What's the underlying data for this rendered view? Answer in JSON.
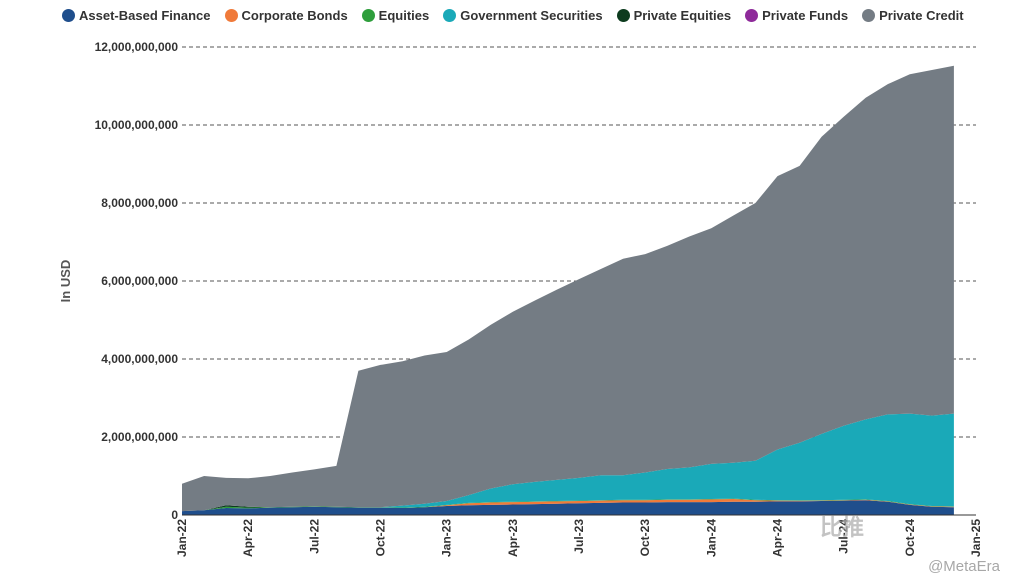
{
  "chart_data": {
    "type": "area",
    "stacked": true,
    "ylabel": "In USD",
    "ylim": [
      0,
      12000000000
    ],
    "yticks": [
      0,
      2000000000,
      4000000000,
      6000000000,
      8000000000,
      10000000000,
      12000000000
    ],
    "ytick_labels": [
      "0",
      "2,000,000,000",
      "4,000,000,000",
      "6,000,000,000",
      "8,000,000,000",
      "10,000,000,000",
      "12,000,000,000"
    ],
    "x": [
      "Jan-22",
      "Feb-22",
      "Mar-22",
      "Apr-22",
      "May-22",
      "Jun-22",
      "Jul-22",
      "Aug-22",
      "Sep-22",
      "Oct-22",
      "Nov-22",
      "Dec-22",
      "Jan-23",
      "Feb-23",
      "Mar-23",
      "Apr-23",
      "May-23",
      "Jun-23",
      "Jul-23",
      "Aug-23",
      "Sep-23",
      "Oct-23",
      "Nov-23",
      "Dec-23",
      "Jan-24",
      "Feb-24",
      "Mar-24",
      "Apr-24",
      "May-24",
      "Jun-24",
      "Jul-24",
      "Aug-24",
      "Sep-24",
      "Oct-24",
      "Nov-24",
      "Dec-24"
    ],
    "xtick_labels": [
      "Jan-22",
      "Apr-22",
      "Jul-22",
      "Oct-22",
      "Jan-23",
      "Apr-23",
      "Jul-23",
      "Oct-23",
      "Jan-24",
      "Apr-24",
      "Jul-24",
      "Oct-24",
      "Jan-25"
    ],
    "legend_position": "top",
    "grid": "horizontal-dashed",
    "series": [
      {
        "name": "Asset-Based Finance",
        "color": "#1f4e8c",
        "values": [
          100000000,
          120000000,
          180000000,
          170000000,
          190000000,
          200000000,
          210000000,
          200000000,
          190000000,
          190000000,
          180000000,
          200000000,
          230000000,
          250000000,
          260000000,
          270000000,
          280000000,
          290000000,
          300000000,
          310000000,
          320000000,
          320000000,
          330000000,
          330000000,
          330000000,
          340000000,
          340000000,
          350000000,
          350000000,
          360000000,
          370000000,
          380000000,
          340000000,
          260000000,
          210000000,
          200000000
        ]
      },
      {
        "name": "Corporate Bonds",
        "color": "#f07a3a",
        "values": [
          0,
          0,
          0,
          0,
          0,
          0,
          0,
          0,
          0,
          0,
          0,
          0,
          20000000,
          50000000,
          60000000,
          60000000,
          60000000,
          60000000,
          60000000,
          60000000,
          60000000,
          60000000,
          60000000,
          60000000,
          70000000,
          70000000,
          40000000,
          20000000,
          15000000,
          10000000,
          10000000,
          10000000,
          10000000,
          10000000,
          10000000,
          10000000
        ]
      },
      {
        "name": "Equities",
        "color": "#2e9e3c",
        "values": [
          0,
          0,
          30000000,
          20000000,
          10000000,
          10000000,
          10000000,
          10000000,
          10000000,
          10000000,
          10000000,
          10000000,
          10000000,
          10000000,
          10000000,
          10000000,
          10000000,
          10000000,
          10000000,
          10000000,
          10000000,
          10000000,
          10000000,
          10000000,
          10000000,
          10000000,
          10000000,
          10000000,
          10000000,
          10000000,
          10000000,
          10000000,
          10000000,
          10000000,
          10000000,
          10000000
        ]
      },
      {
        "name": "Government Securities",
        "color": "#1aa9b8",
        "values": [
          0,
          0,
          0,
          0,
          0,
          0,
          0,
          0,
          0,
          0,
          50000000,
          80000000,
          100000000,
          200000000,
          350000000,
          450000000,
          500000000,
          540000000,
          580000000,
          640000000,
          630000000,
          700000000,
          780000000,
          820000000,
          900000000,
          920000000,
          1000000000,
          1300000000,
          1480000000,
          1700000000,
          1900000000,
          2050000000,
          2220000000,
          2320000000,
          2320000000,
          2380000000
        ]
      },
      {
        "name": "Private Equities",
        "color": "#0d3b1e",
        "values": [
          0,
          0,
          40000000,
          20000000,
          0,
          0,
          0,
          0,
          0,
          0,
          0,
          0,
          0,
          0,
          0,
          0,
          0,
          0,
          0,
          0,
          0,
          0,
          0,
          0,
          0,
          0,
          0,
          0,
          0,
          0,
          0,
          0,
          0,
          0,
          0,
          0
        ]
      },
      {
        "name": "Private Funds",
        "color": "#8e2a9a",
        "values": [
          0,
          0,
          0,
          0,
          0,
          0,
          0,
          0,
          0,
          0,
          0,
          0,
          0,
          0,
          0,
          0,
          0,
          0,
          0,
          0,
          0,
          0,
          0,
          0,
          0,
          0,
          0,
          0,
          0,
          0,
          0,
          0,
          0,
          0,
          0,
          0
        ]
      },
      {
        "name": "Private Credit",
        "color": "#747c84",
        "values": [
          700000000,
          880000000,
          700000000,
          730000000,
          800000000,
          880000000,
          950000000,
          1050000000,
          3500000000,
          3650000000,
          3700000000,
          3800000000,
          3820000000,
          3990000000,
          4200000000,
          4420000000,
          4650000000,
          4880000000,
          5100000000,
          5290000000,
          5550000000,
          5600000000,
          5720000000,
          5920000000,
          6040000000,
          6340000000,
          6610000000,
          7010000000,
          7095000000,
          7620000000,
          7920000000,
          8250000000,
          8470000000,
          8700000000,
          8860000000,
          8920000000
        ]
      }
    ]
  },
  "watermark": {
    "logo_text": "比推",
    "handle": "@MetaEra"
  }
}
